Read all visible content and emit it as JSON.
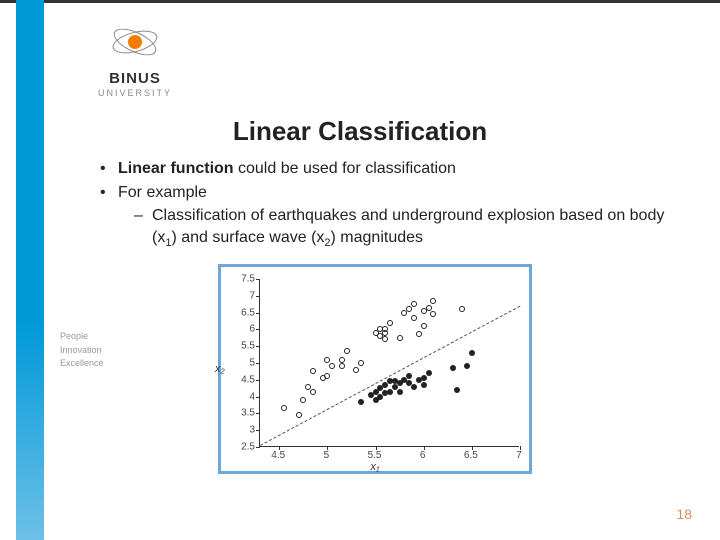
{
  "logo": {
    "name": "BINUS",
    "sub": "UNIVERSITY"
  },
  "tagline": {
    "l1": "People",
    "l2": "Innovation",
    "l3": "Excellence"
  },
  "title": "Linear Classification",
  "bullets": {
    "b1_pre": "Linear function",
    "b1_post": " could be used for classification",
    "b2": "For example",
    "b3a": "Classification of earthquakes and underground explosion based on body (x",
    "b3b": ") and surface wave (x",
    "b3c": ") magnitudes",
    "sub1": "1",
    "sub2": "2"
  },
  "chart": {
    "type": "scatter",
    "xlim": [
      4.3,
      7.0
    ],
    "ylim": [
      2.5,
      7.5
    ],
    "xticks": [
      4.5,
      5,
      5.5,
      6,
      6.5,
      7
    ],
    "yticks": [
      2.5,
      3,
      3.5,
      4,
      4.5,
      5,
      5.5,
      6,
      6.5,
      7,
      7.5
    ],
    "xlabel": "x₁",
    "ylabel": "x₂",
    "background_color": "#ffffff",
    "border_color": "#6fa8d8",
    "axis_color": "#333333",
    "open_points": [
      [
        4.55,
        3.65
      ],
      [
        4.7,
        3.45
      ],
      [
        4.75,
        3.9
      ],
      [
        4.8,
        4.3
      ],
      [
        4.85,
        4.15
      ],
      [
        4.85,
        4.75
      ],
      [
        4.95,
        4.55
      ],
      [
        5.0,
        4.6
      ],
      [
        5.0,
        5.1
      ],
      [
        5.05,
        4.9
      ],
      [
        5.15,
        4.9
      ],
      [
        5.15,
        5.1
      ],
      [
        5.2,
        5.35
      ],
      [
        5.3,
        4.8
      ],
      [
        5.35,
        5.0
      ],
      [
        5.5,
        5.9
      ],
      [
        5.55,
        5.8
      ],
      [
        5.55,
        6.0
      ],
      [
        5.6,
        5.7
      ],
      [
        5.6,
        5.9
      ],
      [
        5.6,
        6.0
      ],
      [
        5.65,
        6.2
      ],
      [
        5.75,
        5.75
      ],
      [
        5.8,
        6.5
      ],
      [
        5.85,
        6.6
      ],
      [
        5.9,
        6.35
      ],
      [
        5.9,
        6.75
      ],
      [
        5.95,
        5.85
      ],
      [
        6.0,
        6.1
      ],
      [
        6.0,
        6.55
      ],
      [
        6.05,
        6.65
      ],
      [
        6.1,
        6.45
      ],
      [
        6.1,
        6.85
      ],
      [
        6.4,
        6.6
      ]
    ],
    "filled_points": [
      [
        5.35,
        3.85
      ],
      [
        5.45,
        4.05
      ],
      [
        5.5,
        3.9
      ],
      [
        5.5,
        4.15
      ],
      [
        5.55,
        4.25
      ],
      [
        5.55,
        4.0
      ],
      [
        5.6,
        4.35
      ],
      [
        5.6,
        4.1
      ],
      [
        5.65,
        4.45
      ],
      [
        5.65,
        4.15
      ],
      [
        5.7,
        4.3
      ],
      [
        5.7,
        4.45
      ],
      [
        5.75,
        4.15
      ],
      [
        5.75,
        4.4
      ],
      [
        5.8,
        4.5
      ],
      [
        5.85,
        4.4
      ],
      [
        5.85,
        4.6
      ],
      [
        5.9,
        4.3
      ],
      [
        5.95,
        4.5
      ],
      [
        6.0,
        4.35
      ],
      [
        6.0,
        4.55
      ],
      [
        6.05,
        4.7
      ],
      [
        6.3,
        4.85
      ],
      [
        6.35,
        4.2
      ],
      [
        6.45,
        4.9
      ],
      [
        6.5,
        5.3
      ]
    ],
    "line": {
      "x1": 4.3,
      "y1": 2.55,
      "x2": 7.0,
      "y2": 6.7
    }
  },
  "page_number": "18"
}
